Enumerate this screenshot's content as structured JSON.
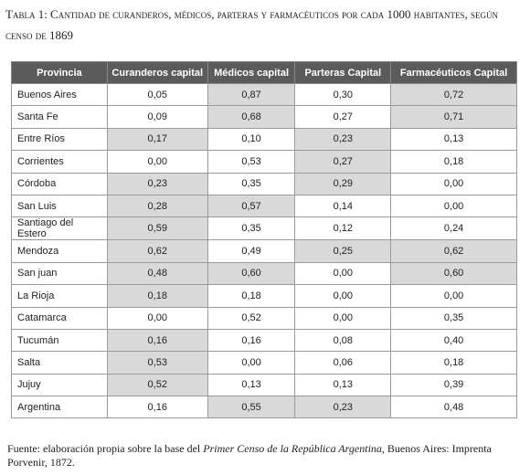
{
  "title": "Tabla 1: Cantidad de curanderos, médicos, parteras y farmacéuticos por cada 1000 habitantes, según censo de 1869",
  "table": {
    "columns": [
      "Provincia",
      "Curanderos capital",
      "Médicos capital",
      "Parteras Capital",
      "Farmacéuticos Capital"
    ],
    "rows": [
      [
        "Buenos Aires",
        "0,05",
        "0,87",
        "0,30",
        "0,72"
      ],
      [
        "Santa Fe",
        "0,09",
        "0,68",
        "0,27",
        "0,71"
      ],
      [
        "Entre Ríos",
        "0,17",
        "0,10",
        "0,23",
        "0,13"
      ],
      [
        "Corrientes",
        "0,00",
        "0,53",
        "0,27",
        "0,18"
      ],
      [
        "Córdoba",
        "0,23",
        "0,35",
        "0,29",
        "0,00"
      ],
      [
        "San Luis",
        "0,28",
        "0,57",
        "0,14",
        "0,00"
      ],
      [
        "Santiago del Estero",
        "0,59",
        "0,35",
        "0,12",
        "0,24"
      ],
      [
        "Mendoza",
        "0,62",
        "0,49",
        "0,25",
        "0,62"
      ],
      [
        "San juan",
        "0,48",
        "0,60",
        "0,00",
        "0,60"
      ],
      [
        "La Rioja",
        "0,18",
        "0,18",
        "0,00",
        "0,00"
      ],
      [
        "Catamarca",
        "0,00",
        "0,52",
        "0,00",
        "0,35"
      ],
      [
        "Tucumán",
        "0,16",
        "0,16",
        "0,08",
        "0,40"
      ],
      [
        "Salta",
        "0,53",
        "0,00",
        "0,06",
        "0,18"
      ],
      [
        "Jujuy",
        "0,52",
        "0,13",
        "0,13",
        "0,39"
      ],
      [
        "Argentina",
        "0,16",
        "0,55",
        "0,23",
        "0,48"
      ]
    ],
    "shaded": [
      [
        false,
        false,
        true,
        false,
        true
      ],
      [
        false,
        false,
        true,
        false,
        true
      ],
      [
        false,
        true,
        false,
        true,
        false
      ],
      [
        false,
        false,
        false,
        true,
        false
      ],
      [
        false,
        true,
        false,
        true,
        false
      ],
      [
        false,
        true,
        true,
        false,
        false
      ],
      [
        false,
        true,
        false,
        false,
        false
      ],
      [
        false,
        true,
        false,
        true,
        true
      ],
      [
        false,
        true,
        true,
        false,
        true
      ],
      [
        false,
        true,
        false,
        false,
        false
      ],
      [
        false,
        false,
        false,
        false,
        false
      ],
      [
        false,
        true,
        false,
        false,
        false
      ],
      [
        false,
        true,
        false,
        false,
        false
      ],
      [
        false,
        true,
        false,
        false,
        false
      ],
      [
        false,
        false,
        true,
        true,
        false
      ]
    ]
  },
  "source": {
    "before": "Fuente: elaboración propia sobre la base del ",
    "italic": "Primer Censo de la República Argentina",
    "after": ", Buenos Aires: Imprenta Porvenir, 1872."
  }
}
